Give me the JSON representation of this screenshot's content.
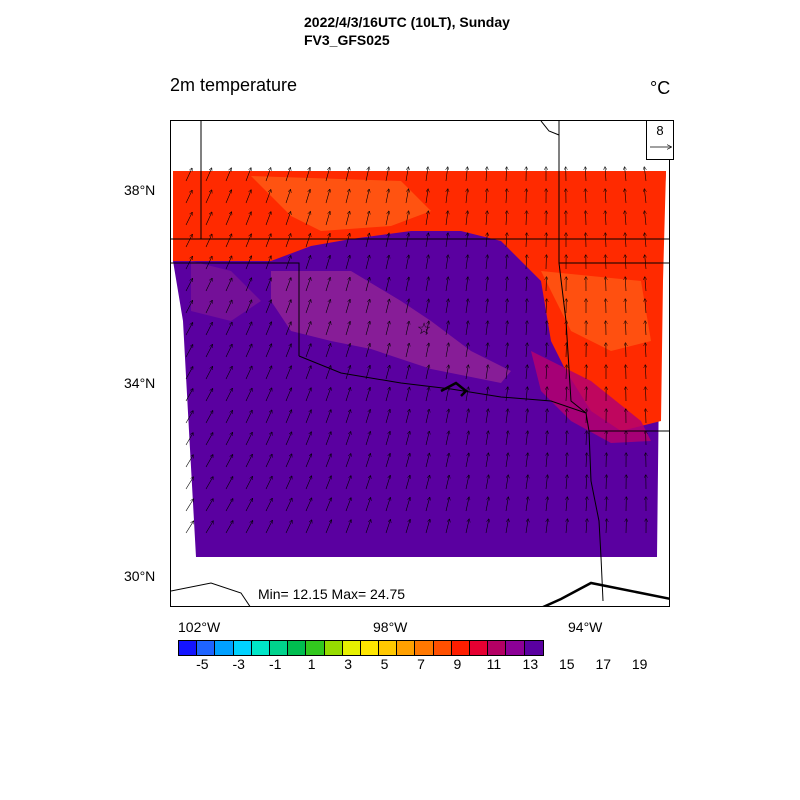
{
  "header": {
    "line1": "2022/4/3/16UTC (10LT), Sunday",
    "line2": "FV3_GFS025"
  },
  "variable_title": "2m temperature",
  "units": "°C",
  "reference_vector": {
    "value": "8"
  },
  "stats": {
    "text": "Min= 12.15 Max= 24.75",
    "min": 12.15,
    "max": 24.75
  },
  "lat_labels": [
    "38°N",
    "34°N",
    "30°N"
  ],
  "lon_labels": [
    "102°W",
    "98°W",
    "94°W"
  ],
  "colorbar": {
    "labels": [
      "-5",
      "-3",
      "-1",
      "1",
      "3",
      "5",
      "7",
      "9",
      "11",
      "13",
      "15",
      "17",
      "19"
    ],
    "colors": [
      "#1414ff",
      "#1e64ff",
      "#00a0ff",
      "#00d2ff",
      "#00e6c8",
      "#00d28c",
      "#00be50",
      "#32c81e",
      "#96dc00",
      "#e6f000",
      "#ffe600",
      "#ffc800",
      "#ffa000",
      "#ff7800",
      "#ff5000",
      "#ff1e00",
      "#e60032",
      "#b40064",
      "#8c0096",
      "#5a00a0"
    ]
  },
  "temperature_colors": {
    "cool": "#5a00a0",
    "mid": "#8c2096",
    "warm_red": "#ff2a00",
    "warm_orange": "#ff5a14"
  },
  "marker": {
    "symbol": "☆"
  }
}
